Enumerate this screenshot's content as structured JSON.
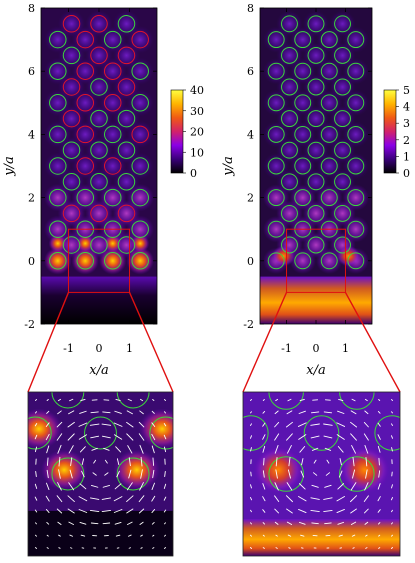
{
  "chart_data": [
    {
      "type": "heatmap",
      "panel": "left",
      "xlabel": "x/a",
      "ylabel": "y/a",
      "xticks": [
        "-1",
        "0",
        "1"
      ],
      "yticks": [
        "-2",
        "0",
        "2",
        "4",
        "6",
        "8"
      ],
      "xlim": [
        -1.9,
        1.9
      ],
      "ylim": [
        -2,
        8
      ],
      "colorbar": {
        "ticks": [
          "0",
          "10",
          "20",
          "30",
          "40"
        ],
        "range": [
          0,
          40
        ]
      },
      "circles": [
        {
          "x": -1.35,
          "y": 0.0,
          "c": "green"
        },
        {
          "x": -0.45,
          "y": 0.0,
          "c": "green"
        },
        {
          "x": 0.45,
          "y": 0.0,
          "c": "green"
        },
        {
          "x": 1.35,
          "y": 0.0,
          "c": "green"
        },
        {
          "x": -0.9,
          "y": 0.5,
          "c": "green"
        },
        {
          "x": 0.0,
          "y": 0.5,
          "c": "green"
        },
        {
          "x": 0.9,
          "y": 0.5,
          "c": "green"
        },
        {
          "x": -1.35,
          "y": 1.0,
          "c": "green"
        },
        {
          "x": -0.45,
          "y": 1.0,
          "c": "green"
        },
        {
          "x": 0.45,
          "y": 1.0,
          "c": "green"
        },
        {
          "x": 1.35,
          "y": 1.0,
          "c": "green"
        },
        {
          "x": -0.9,
          "y": 1.5,
          "c": "red"
        },
        {
          "x": 0.0,
          "y": 1.5,
          "c": "red"
        },
        {
          "x": 0.9,
          "y": 1.5,
          "c": "red"
        },
        {
          "x": -1.35,
          "y": 2.0,
          "c": "green"
        },
        {
          "x": -0.45,
          "y": 2.0,
          "c": "green"
        },
        {
          "x": 0.45,
          "y": 2.0,
          "c": "green"
        },
        {
          "x": 1.35,
          "y": 2.0,
          "c": "green"
        },
        {
          "x": -0.9,
          "y": 2.5,
          "c": "green"
        },
        {
          "x": 0.0,
          "y": 2.5,
          "c": "green"
        },
        {
          "x": 0.9,
          "y": 2.5,
          "c": "green"
        },
        {
          "x": -1.35,
          "y": 3.0,
          "c": "green"
        },
        {
          "x": -0.45,
          "y": 3.0,
          "c": "red"
        },
        {
          "x": 0.45,
          "y": 3.0,
          "c": "red"
        },
        {
          "x": 1.35,
          "y": 3.0,
          "c": "green"
        },
        {
          "x": -0.9,
          "y": 3.5,
          "c": "green"
        },
        {
          "x": 0.0,
          "y": 3.5,
          "c": "green"
        },
        {
          "x": 0.9,
          "y": 3.5,
          "c": "green"
        },
        {
          "x": -1.35,
          "y": 4.0,
          "c": "green"
        },
        {
          "x": -0.45,
          "y": 4.0,
          "c": "red"
        },
        {
          "x": 0.45,
          "y": 4.0,
          "c": "green"
        },
        {
          "x": 1.35,
          "y": 4.0,
          "c": "red"
        },
        {
          "x": -0.9,
          "y": 4.5,
          "c": "red"
        },
        {
          "x": 0.0,
          "y": 4.5,
          "c": "green"
        },
        {
          "x": 0.9,
          "y": 4.5,
          "c": "green"
        },
        {
          "x": -1.35,
          "y": 5.0,
          "c": "green"
        },
        {
          "x": -0.45,
          "y": 5.0,
          "c": "red"
        },
        {
          "x": 0.45,
          "y": 5.0,
          "c": "red"
        },
        {
          "x": 1.35,
          "y": 5.0,
          "c": "green"
        },
        {
          "x": -0.9,
          "y": 5.5,
          "c": "red"
        },
        {
          "x": 0.0,
          "y": 5.5,
          "c": "green"
        },
        {
          "x": 0.9,
          "y": 5.5,
          "c": "red"
        },
        {
          "x": -1.35,
          "y": 6.0,
          "c": "green"
        },
        {
          "x": -0.45,
          "y": 6.0,
          "c": "red"
        },
        {
          "x": 0.45,
          "y": 6.0,
          "c": "red"
        },
        {
          "x": 1.35,
          "y": 6.0,
          "c": "green"
        },
        {
          "x": -0.9,
          "y": 6.5,
          "c": "green"
        },
        {
          "x": 0.0,
          "y": 6.5,
          "c": "red"
        },
        {
          "x": 0.9,
          "y": 6.5,
          "c": "red"
        },
        {
          "x": -1.35,
          "y": 7.0,
          "c": "green"
        },
        {
          "x": -0.45,
          "y": 7.0,
          "c": "red"
        },
        {
          "x": 0.45,
          "y": 7.0,
          "c": "green"
        },
        {
          "x": 1.35,
          "y": 7.0,
          "c": "red"
        },
        {
          "x": -0.9,
          "y": 7.5,
          "c": "red"
        },
        {
          "x": 0.0,
          "y": 7.5,
          "c": "red"
        },
        {
          "x": 0.9,
          "y": 7.5,
          "c": "green"
        }
      ],
      "zoom_box": {
        "x": [
          -1,
          1
        ],
        "y": [
          -1,
          1
        ]
      }
    },
    {
      "type": "heatmap",
      "panel": "right",
      "xlabel": "x/a",
      "ylabel": "y/a",
      "xticks": [
        "-1",
        "0",
        "1"
      ],
      "yticks": [
        "-2",
        "0",
        "2",
        "4",
        "6",
        "8"
      ],
      "xlim": [
        -1.9,
        1.9
      ],
      "ylim": [
        -2,
        8
      ],
      "colorbar": {
        "ticks": [
          "0",
          "1",
          "2",
          "3",
          "4",
          "5"
        ],
        "range": [
          0,
          5
        ]
      },
      "circles": [
        {
          "x": -1.35,
          "y": 0.0,
          "c": "green"
        },
        {
          "x": -0.45,
          "y": 0.0,
          "c": "green"
        },
        {
          "x": 0.45,
          "y": 0.0,
          "c": "green"
        },
        {
          "x": 1.35,
          "y": 0.0,
          "c": "green"
        },
        {
          "x": -0.9,
          "y": 0.5,
          "c": "green"
        },
        {
          "x": 0.0,
          "y": 0.5,
          "c": "green"
        },
        {
          "x": 0.9,
          "y": 0.5,
          "c": "green"
        },
        {
          "x": -1.35,
          "y": 1.0,
          "c": "green"
        },
        {
          "x": -0.45,
          "y": 1.0,
          "c": "green"
        },
        {
          "x": 0.45,
          "y": 1.0,
          "c": "green"
        },
        {
          "x": 1.35,
          "y": 1.0,
          "c": "green"
        },
        {
          "x": -0.9,
          "y": 1.5,
          "c": "green"
        },
        {
          "x": 0.0,
          "y": 1.5,
          "c": "green"
        },
        {
          "x": 0.9,
          "y": 1.5,
          "c": "green"
        },
        {
          "x": -1.35,
          "y": 2.0,
          "c": "green"
        },
        {
          "x": -0.45,
          "y": 2.0,
          "c": "green"
        },
        {
          "x": 0.45,
          "y": 2.0,
          "c": "green"
        },
        {
          "x": 1.35,
          "y": 2.0,
          "c": "green"
        },
        {
          "x": -0.9,
          "y": 2.5,
          "c": "green"
        },
        {
          "x": 0.0,
          "y": 2.5,
          "c": "green"
        },
        {
          "x": 0.9,
          "y": 2.5,
          "c": "green"
        },
        {
          "x": -1.35,
          "y": 3.0,
          "c": "green"
        },
        {
          "x": -0.45,
          "y": 3.0,
          "c": "green"
        },
        {
          "x": 0.45,
          "y": 3.0,
          "c": "green"
        },
        {
          "x": 1.35,
          "y": 3.0,
          "c": "green"
        },
        {
          "x": -0.9,
          "y": 3.5,
          "c": "green"
        },
        {
          "x": 0.0,
          "y": 3.5,
          "c": "green"
        },
        {
          "x": 0.9,
          "y": 3.5,
          "c": "green"
        },
        {
          "x": -1.35,
          "y": 4.0,
          "c": "green"
        },
        {
          "x": -0.45,
          "y": 4.0,
          "c": "green"
        },
        {
          "x": 0.45,
          "y": 4.0,
          "c": "green"
        },
        {
          "x": 1.35,
          "y": 4.0,
          "c": "green"
        },
        {
          "x": -0.9,
          "y": 4.5,
          "c": "green"
        },
        {
          "x": 0.0,
          "y": 4.5,
          "c": "green"
        },
        {
          "x": 0.9,
          "y": 4.5,
          "c": "green"
        },
        {
          "x": -1.35,
          "y": 5.0,
          "c": "green"
        },
        {
          "x": -0.45,
          "y": 5.0,
          "c": "green"
        },
        {
          "x": 0.45,
          "y": 5.0,
          "c": "green"
        },
        {
          "x": 1.35,
          "y": 5.0,
          "c": "green"
        },
        {
          "x": -0.9,
          "y": 5.5,
          "c": "green"
        },
        {
          "x": 0.0,
          "y": 5.5,
          "c": "green"
        },
        {
          "x": 0.9,
          "y": 5.5,
          "c": "green"
        },
        {
          "x": -1.35,
          "y": 6.0,
          "c": "green"
        },
        {
          "x": -0.45,
          "y": 6.0,
          "c": "green"
        },
        {
          "x": 0.45,
          "y": 6.0,
          "c": "green"
        },
        {
          "x": 1.35,
          "y": 6.0,
          "c": "green"
        },
        {
          "x": -0.9,
          "y": 6.5,
          "c": "green"
        },
        {
          "x": 0.0,
          "y": 6.5,
          "c": "green"
        },
        {
          "x": 0.9,
          "y": 6.5,
          "c": "green"
        },
        {
          "x": -1.35,
          "y": 7.0,
          "c": "green"
        },
        {
          "x": -0.45,
          "y": 7.0,
          "c": "green"
        },
        {
          "x": 0.45,
          "y": 7.0,
          "c": "green"
        },
        {
          "x": 1.35,
          "y": 7.0,
          "c": "green"
        },
        {
          "x": -0.9,
          "y": 7.5,
          "c": "green"
        },
        {
          "x": 0.0,
          "y": 7.5,
          "c": "green"
        },
        {
          "x": 0.9,
          "y": 7.5,
          "c": "green"
        }
      ],
      "zoom_box": {
        "x": [
          -1,
          1
        ],
        "y": [
          -1,
          1
        ]
      }
    }
  ],
  "colors": {
    "background_field": "#2a0a45",
    "hot": "#ff9a00",
    "circle_green": "#3cd63c",
    "circle_red": "#e0142a",
    "zoom_box": "#e01010",
    "arrow": "#ffffff"
  },
  "colorscale": [
    "#000000",
    "#3a007a",
    "#8a00e6",
    "#d2226a",
    "#f05a14",
    "#ffb400",
    "#ffff40"
  ]
}
